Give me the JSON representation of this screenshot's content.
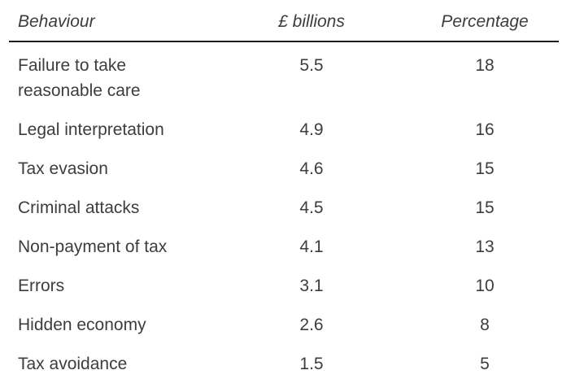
{
  "table": {
    "headers": {
      "behaviour": "Behaviour",
      "billions": "£ billions",
      "percentage": "Percentage"
    },
    "rows": [
      {
        "behaviour": "Failure to take reasonable care",
        "billions": "5.5",
        "percentage": "18"
      },
      {
        "behaviour": "Legal interpretation",
        "billions": "4.9",
        "percentage": "16"
      },
      {
        "behaviour": "Tax evasion",
        "billions": "4.6",
        "percentage": "15"
      },
      {
        "behaviour": "Criminal attacks",
        "billions": "4.5",
        "percentage": "15"
      },
      {
        "behaviour": "Non-payment of tax",
        "billions": "4.1",
        "percentage": "13"
      },
      {
        "behaviour": "Errors",
        "billions": "3.1",
        "percentage": "10"
      },
      {
        "behaviour": "Hidden economy",
        "billions": "2.6",
        "percentage": "8"
      },
      {
        "behaviour": "Tax avoidance",
        "billions": "1.5",
        "percentage": "5"
      }
    ]
  },
  "chart_data": {
    "type": "table",
    "columns": [
      "Behaviour",
      "£ billions",
      "Percentage"
    ],
    "rows": [
      [
        "Failure to take reasonable care",
        5.5,
        18
      ],
      [
        "Legal interpretation",
        4.9,
        16
      ],
      [
        "Tax evasion",
        4.6,
        15
      ],
      [
        "Criminal attacks",
        4.5,
        15
      ],
      [
        "Non-payment of tax",
        4.1,
        13
      ],
      [
        "Errors",
        3.1,
        10
      ],
      [
        "Hidden economy",
        2.6,
        8
      ],
      [
        "Tax avoidance",
        1.5,
        5
      ]
    ]
  },
  "colors": {
    "text": "#3d3d3d",
    "header_rule": "#1c1c1c",
    "background": "#ffffff"
  }
}
